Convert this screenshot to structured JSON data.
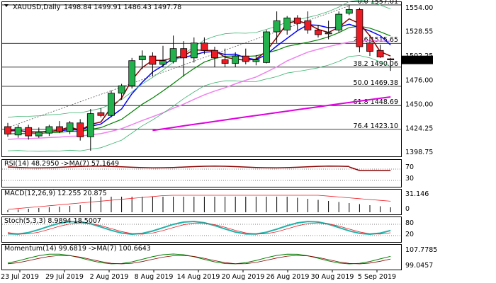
{
  "header": {
    "symbol": "XAUUSD,Daily",
    "ohlc": "1498.84 1499.91 1486.43 1497.78"
  },
  "colors": {
    "up": "#22b14c",
    "down": "#ed1c24",
    "ma_fast": "#8b0000",
    "ma_blue": "#0000ff",
    "ma_green": "#008000",
    "ma_violet": "#ee82ee",
    "ma_magenta": "#e000e0",
    "bollinger": "#3cb371",
    "grid": "#000000",
    "rsi": "#8b0000",
    "stoch": "#20b2aa",
    "momentum": "#008000"
  },
  "chart_data": [
    {
      "type": "candlestick",
      "title": "XAUUSD,Daily",
      "ylim": [
        1394,
        1560
      ],
      "y_ticks": [
        1554.0,
        1528.55,
        1502.25,
        1476.0,
        1450.0,
        1424.25,
        1398.75
      ],
      "x_labels": [
        "23 Jul 2019",
        "29 Jul 2019",
        "2 Aug 2019",
        "8 Aug 2019",
        "14 Aug 2019",
        "20 Aug 2019",
        "26 Aug 2019",
        "30 Aug 2019",
        "5 Sep 2019"
      ],
      "current_price": "1497.78",
      "fibonacci": [
        {
          "label": "0.0 1557.01",
          "value": 1557.01
        },
        {
          "label": "23.6 1515.65",
          "value": 1515.65
        },
        {
          "label": "38.2 1490.06",
          "value": 1490.06
        },
        {
          "label": "50.0 1469.38",
          "value": 1469.38
        },
        {
          "label": "61.8 1448.69",
          "value": 1448.69
        },
        {
          "label": "76.4 1423.10",
          "value": 1423.1
        }
      ],
      "candles": [
        {
          "o": 1426,
          "h": 1430,
          "l": 1415,
          "c": 1418
        },
        {
          "o": 1417,
          "h": 1428,
          "l": 1414,
          "c": 1425
        },
        {
          "o": 1425,
          "h": 1428,
          "l": 1412,
          "c": 1416
        },
        {
          "o": 1416,
          "h": 1425,
          "l": 1414,
          "c": 1420
        },
        {
          "o": 1419,
          "h": 1428,
          "l": 1416,
          "c": 1426
        },
        {
          "o": 1426,
          "h": 1432,
          "l": 1419,
          "c": 1421
        },
        {
          "o": 1421,
          "h": 1432,
          "l": 1418,
          "c": 1430
        },
        {
          "o": 1430,
          "h": 1434,
          "l": 1411,
          "c": 1415
        },
        {
          "o": 1415,
          "h": 1445,
          "l": 1400,
          "c": 1440
        },
        {
          "o": 1441,
          "h": 1446,
          "l": 1436,
          "c": 1438
        },
        {
          "o": 1438,
          "h": 1465,
          "l": 1436,
          "c": 1462
        },
        {
          "o": 1462,
          "h": 1472,
          "l": 1455,
          "c": 1470
        },
        {
          "o": 1470,
          "h": 1500,
          "l": 1467,
          "c": 1497
        },
        {
          "o": 1498,
          "h": 1508,
          "l": 1488,
          "c": 1502
        },
        {
          "o": 1502,
          "h": 1506,
          "l": 1480,
          "c": 1493
        },
        {
          "o": 1493,
          "h": 1513,
          "l": 1490,
          "c": 1497
        },
        {
          "o": 1496,
          "h": 1524,
          "l": 1494,
          "c": 1510
        },
        {
          "o": 1510,
          "h": 1518,
          "l": 1480,
          "c": 1500
        },
        {
          "o": 1500,
          "h": 1522,
          "l": 1495,
          "c": 1516
        },
        {
          "o": 1516,
          "h": 1522,
          "l": 1504,
          "c": 1508
        },
        {
          "o": 1508,
          "h": 1512,
          "l": 1490,
          "c": 1500
        },
        {
          "o": 1498,
          "h": 1510,
          "l": 1490,
          "c": 1494
        },
        {
          "o": 1494,
          "h": 1506,
          "l": 1490,
          "c": 1502
        },
        {
          "o": 1502,
          "h": 1510,
          "l": 1493,
          "c": 1496
        },
        {
          "o": 1496,
          "h": 1503,
          "l": 1492,
          "c": 1498
        },
        {
          "o": 1495,
          "h": 1530,
          "l": 1494,
          "c": 1528
        },
        {
          "o": 1528,
          "h": 1550,
          "l": 1516,
          "c": 1540
        },
        {
          "o": 1530,
          "h": 1545,
          "l": 1525,
          "c": 1543
        },
        {
          "o": 1543,
          "h": 1546,
          "l": 1530,
          "c": 1537
        },
        {
          "o": 1540,
          "h": 1550,
          "l": 1526,
          "c": 1530
        },
        {
          "o": 1530,
          "h": 1535,
          "l": 1522,
          "c": 1525
        },
        {
          "o": 1526,
          "h": 1540,
          "l": 1520,
          "c": 1527
        },
        {
          "o": 1530,
          "h": 1550,
          "l": 1527,
          "c": 1547
        },
        {
          "o": 1548,
          "h": 1557,
          "l": 1546,
          "c": 1552
        },
        {
          "o": 1552,
          "h": 1554,
          "l": 1506,
          "c": 1512
        },
        {
          "o": 1516,
          "h": 1525,
          "l": 1502,
          "c": 1507
        },
        {
          "o": 1508,
          "h": 1514,
          "l": 1500,
          "c": 1501
        },
        {
          "o": 1499,
          "h": 1500,
          "l": 1486,
          "c": 1498
        }
      ]
    },
    {
      "type": "line",
      "title": "RSI(14) 48.2950 ->MA(7) 57.1649",
      "y_ticks": [
        70,
        30
      ]
    },
    {
      "type": "bar",
      "title": "MACD(12,26,9) 12.255 20.875",
      "y_ticks": [
        31.146,
        0
      ]
    },
    {
      "type": "line",
      "title": "Stoch(5,3,3) 8.9894 18.5007",
      "y_ticks": [
        80,
        20
      ]
    },
    {
      "type": "line",
      "title": "Momentum(14) 99.6819 ->MA(7) 100.6643",
      "y_ticks": [
        107.7785,
        99.0457
      ]
    }
  ]
}
